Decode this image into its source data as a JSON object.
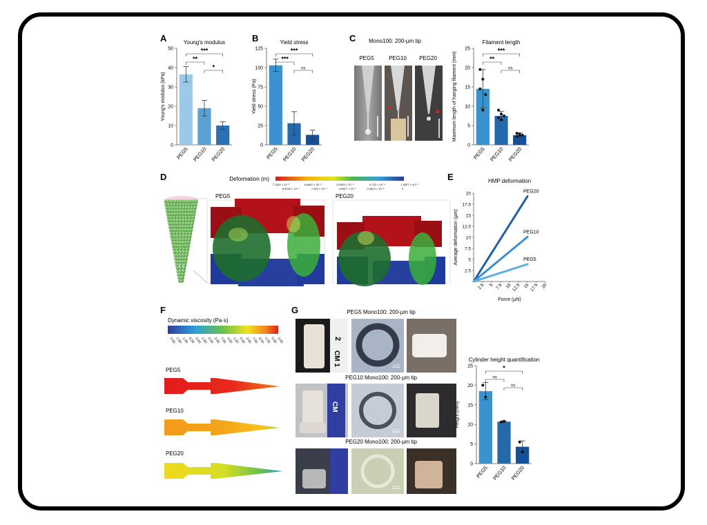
{
  "panels": {
    "A": {
      "letter": "A",
      "title": "Young's modulus"
    },
    "B": {
      "letter": "B",
      "title": "Yield stress"
    },
    "C": {
      "letter": "C",
      "photo_title": "Mono100: 200-µm tip",
      "labels": [
        "PEG5",
        "PEG10",
        "PEG20"
      ],
      "chart_title": "Filament length"
    },
    "D": {
      "letter": "D",
      "legend_title": "Deformation (m)",
      "ticks_top": [
        "7.1164 × 10⁻⁵",
        "6.6647 × 10⁻⁵",
        "6.2053 × 10⁻⁵",
        "3.722 × 10⁻⁵",
        "1.4907 × 10⁻⁵"
      ],
      "ticks_bottom": [
        "8.9233 × 10⁻⁵",
        "7.444 × 10⁻⁵",
        "4.9627 × 10⁻⁵",
        "2.4813 × 10⁻⁵",
        "0"
      ],
      "label_left": "PEG5",
      "label_right": "PEG20"
    },
    "E": {
      "letter": "E",
      "title": "HMP deformation"
    },
    "F": {
      "letter": "F",
      "legend_title": "Dynamic viscosity (Pa·s)",
      "ticks": [
        "2.00",
        "1.50",
        "1.00",
        "6.00",
        "3.00",
        "1.50",
        "5.00",
        "2.00",
        "7.00",
        "3.00",
        "1.50",
        "5.00",
        "2.00",
        "7.00",
        "3.00",
        "1.00",
        "5.00",
        "2.00"
      ],
      "labels": [
        "PEG5",
        "PEG10",
        "PEG20"
      ]
    },
    "G": {
      "letter": "G",
      "rows": [
        "PEG5 Mono100: 200-µm tip",
        "PEG10 Mono100: 200-µm tip",
        "PEG20 Mono100: 200-µm tip"
      ],
      "ruler_text": [
        "2",
        "CM 1",
        "CM"
      ],
      "scale_label": "5 mm",
      "chart_title": "Cylinder height quantification"
    }
  },
  "chart_data": [
    {
      "id": "A",
      "type": "bar",
      "title": "Young's modulus",
      "ylabel": "Young's modulus (kPa)",
      "categories": [
        "PEG5",
        "PEG10",
        "PEG20"
      ],
      "values": [
        36.5,
        19,
        10
      ],
      "errors": [
        4,
        4,
        2
      ],
      "ylim": [
        0,
        50
      ],
      "yticks": [
        0,
        10,
        20,
        30,
        40,
        50
      ],
      "colors": [
        "#9dc9e8",
        "#5aa2d4",
        "#2a71b6"
      ],
      "significance": [
        {
          "from": 0,
          "to": 2,
          "label": "***"
        },
        {
          "from": 0,
          "to": 1,
          "label": "**"
        },
        {
          "from": 1,
          "to": 2,
          "label": "*"
        }
      ]
    },
    {
      "id": "B",
      "type": "bar",
      "title": "Yield stress",
      "ylabel": "Yield stress (Pa)",
      "categories": [
        "PEG5",
        "PEG10",
        "PEG20"
      ],
      "values": [
        103,
        28,
        13
      ],
      "errors": [
        8,
        15,
        6
      ],
      "ylim": [
        0,
        125
      ],
      "yticks": [
        0,
        25,
        50,
        75,
        100,
        125
      ],
      "colors": [
        "#3a92cf",
        "#2369ac",
        "#13519a"
      ],
      "significance": [
        {
          "from": 0,
          "to": 2,
          "label": "***"
        },
        {
          "from": 0,
          "to": 1,
          "label": "***"
        },
        {
          "from": 1,
          "to": 2,
          "label": "ns"
        }
      ]
    },
    {
      "id": "C",
      "type": "bar",
      "title": "Filament length",
      "ylabel": "Maximum length of hanging filament (mm)",
      "categories": [
        "PEG5",
        "PEG10",
        "PEG20"
      ],
      "values": [
        14.5,
        7.5,
        2.5
      ],
      "errors": [
        5,
        1.2,
        0.6
      ],
      "ylim": [
        0,
        25
      ],
      "yticks": [
        0,
        5,
        10,
        15,
        20,
        25
      ],
      "colors": [
        "#3a92cf",
        "#2369ac",
        "#13519a"
      ],
      "points": [
        [
          19.5,
          17,
          13,
          14.5,
          9
        ],
        [
          9,
          8,
          7.5,
          7,
          6.5
        ],
        [
          3,
          2.5,
          2.5,
          2.2,
          2.8
        ]
      ],
      "significance": [
        {
          "from": 0,
          "to": 2,
          "label": "***"
        },
        {
          "from": 0,
          "to": 1,
          "label": "**"
        },
        {
          "from": 1,
          "to": 2,
          "label": "ns"
        }
      ]
    },
    {
      "id": "E",
      "type": "line",
      "title": "HMP deformation",
      "xlabel": "Force (µN)",
      "ylabel": "Average deformation (µm)",
      "xlim": [
        0,
        20
      ],
      "ylim": [
        0,
        20
      ],
      "xticks": [
        "2.5",
        "5",
        "7.5",
        "10",
        "12.5",
        "15",
        "17.5",
        "20"
      ],
      "yticks": [
        "2.5",
        "5",
        "7.5",
        "10",
        "12.5",
        "15",
        "17.5",
        "20"
      ],
      "series": [
        {
          "name": "PEG20",
          "x": [
            0,
            15
          ],
          "y": [
            0,
            19.3
          ],
          "color": "#1f5fa8"
        },
        {
          "name": "PEG10",
          "x": [
            0,
            15
          ],
          "y": [
            0,
            10.1
          ],
          "color": "#3a8fcf"
        },
        {
          "name": "PEG5",
          "x": [
            0,
            15
          ],
          "y": [
            0,
            3.9
          ],
          "color": "#5aaee0"
        }
      ]
    },
    {
      "id": "G",
      "type": "bar",
      "title": "Cylinder height quantification",
      "ylabel": "Height (mm)",
      "categories": [
        "PEG5",
        "PEG10",
        "PEG20"
      ],
      "values": [
        18.5,
        10.7,
        4.3
      ],
      "errors": [
        2.2,
        0.2,
        1.5
      ],
      "ylim": [
        0,
        25
      ],
      "yticks": [
        0,
        5,
        10,
        15,
        20,
        25
      ],
      "colors": [
        "#3a92cf",
        "#2369ac",
        "#13519a"
      ],
      "points": [
        [
          20,
          17
        ],
        [
          10.6,
          10.8
        ],
        [
          5.5,
          3
        ]
      ],
      "significance": [
        {
          "from": 0,
          "to": 2,
          "label": "*"
        },
        {
          "from": 0,
          "to": 1,
          "label": "ns"
        },
        {
          "from": 1,
          "to": 2,
          "label": "ns"
        }
      ]
    }
  ]
}
